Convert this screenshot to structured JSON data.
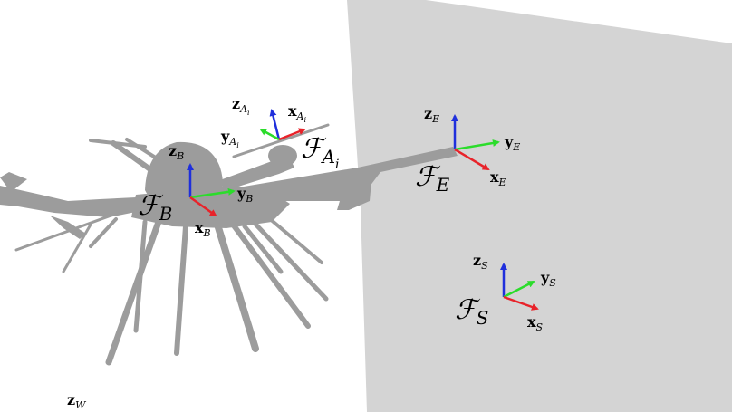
{
  "colors": {
    "background": "#ffffff",
    "wall": "#d4d4d4",
    "vehicle": "#9c9c9c",
    "axis_x": "#e8232a",
    "axis_y": "#2bdc2b",
    "axis_z": "#1f2fdc"
  },
  "frames": {
    "body": {
      "name_main": "ℱ",
      "name_sub": "B",
      "z_main": "z",
      "z_sub": "B",
      "y_main": "y",
      "y_sub": "B",
      "x_main": "x",
      "x_sub": "B"
    },
    "arm": {
      "name_main": "ℱ",
      "name_sub": "A",
      "name_subsub": "i",
      "z_main": "z",
      "z_sub": "A",
      "z_subsub": "i",
      "y_main": "y",
      "y_sub": "A",
      "y_subsub": "i",
      "x_main": "x",
      "x_sub": "A",
      "x_subsub": "i"
    },
    "end_effector": {
      "name_main": "ℱ",
      "name_sub": "E",
      "z_main": "z",
      "z_sub": "E",
      "y_main": "y",
      "y_sub": "E",
      "x_main": "x",
      "x_sub": "E"
    },
    "surface": {
      "name_main": "ℱ",
      "name_sub": "S",
      "z_main": "z",
      "z_sub": "S",
      "y_main": "y",
      "y_sub": "S",
      "x_main": "x",
      "x_sub": "S"
    },
    "world": {
      "z_main": "z",
      "z_sub": "W"
    }
  }
}
